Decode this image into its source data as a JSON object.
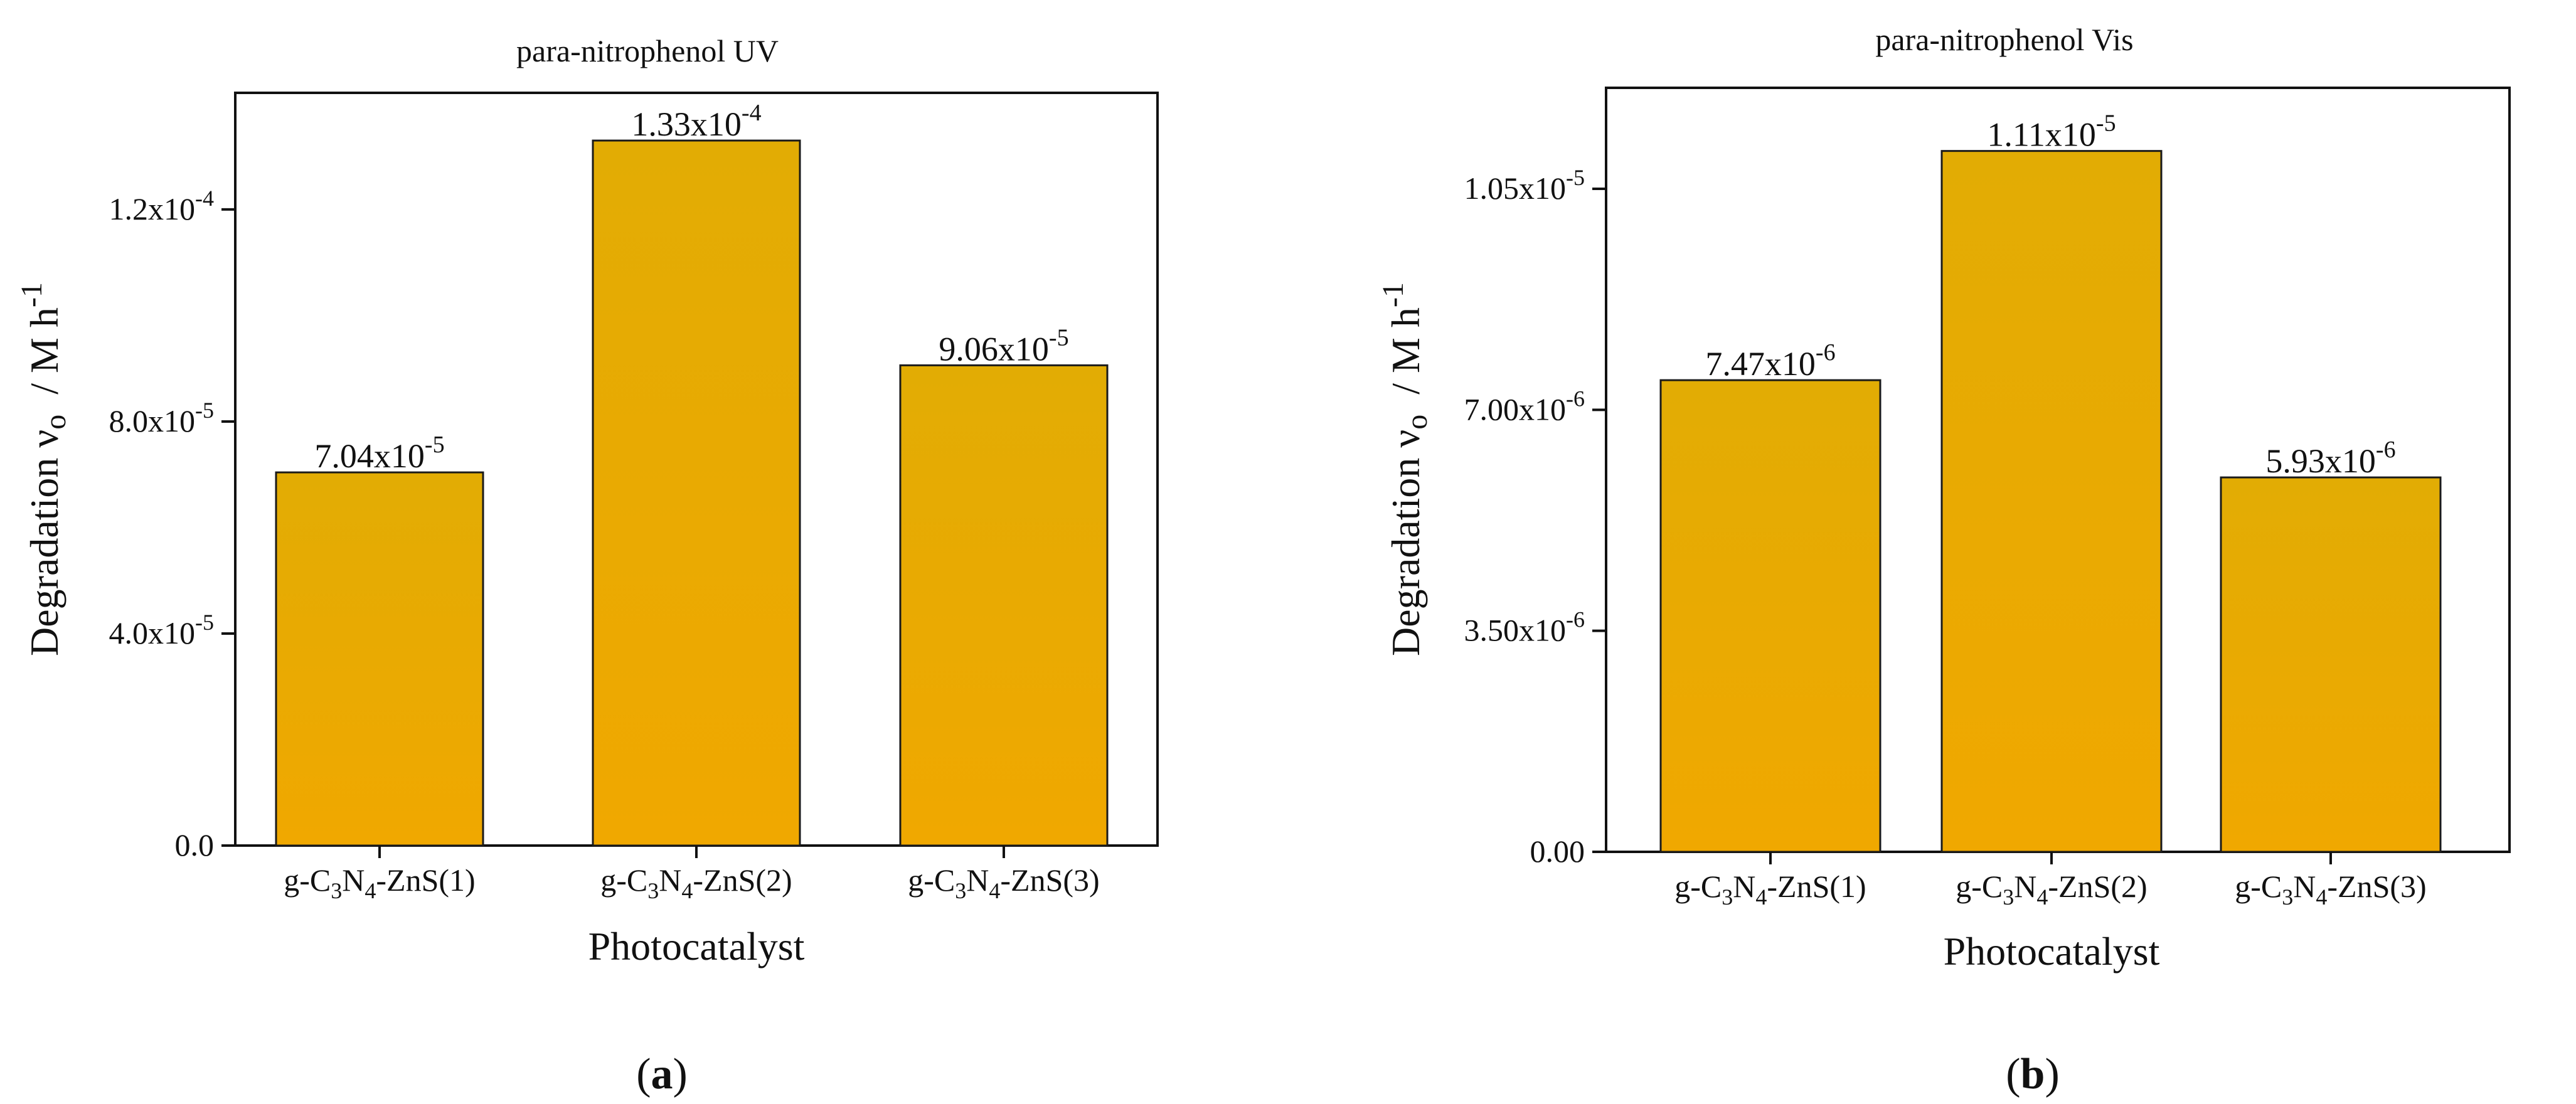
{
  "figure": {
    "panel_labels": [
      {
        "open": "(",
        "letter": "a",
        "close": ")"
      },
      {
        "open": "(",
        "letter": "b",
        "close": ")"
      }
    ]
  },
  "chart_data": [
    {
      "type": "bar",
      "title": "para-nitrophenol UV",
      "xlabel": "Photocatalyst",
      "ylabel": {
        "main": "Degradation ν",
        "sub": "o",
        "unit": "  / M h",
        "sup": "-1"
      },
      "categories": [
        {
          "pre": "g-C",
          "s1": "3",
          "mid": "N",
          "s2": "4",
          "post": "-ZnS(1)"
        },
        {
          "pre": "g-C",
          "s1": "3",
          "mid": "N",
          "s2": "4",
          "post": "-ZnS(2)"
        },
        {
          "pre": "g-C",
          "s1": "3",
          "mid": "N",
          "s2": "4",
          "post": "-ZnS(3)"
        }
      ],
      "values": [
        7.04e-05,
        0.000133,
        9.06e-05
      ],
      "data_labels": [
        {
          "mantissa": "7.04x10",
          "exp": "-5"
        },
        {
          "mantissa": "1.33x10",
          "exp": "-4"
        },
        {
          "mantissa": "9.06x10",
          "exp": "-5"
        }
      ],
      "ylim": [
        0,
        0.000142
      ],
      "yticks": [
        {
          "value": 0,
          "text": "0.0",
          "exp": ""
        },
        {
          "value": 4e-05,
          "text": "4.0x10",
          "exp": "-5"
        },
        {
          "value": 8e-05,
          "text": "8.0x10",
          "exp": "-5"
        },
        {
          "value": 0.00012,
          "text": "1.2x10",
          "exp": "-4"
        }
      ],
      "bar_color": "#EBAA00",
      "grid": false,
      "legend": "none"
    },
    {
      "type": "bar",
      "title": "para-nitrophenol Vis",
      "xlabel": "Photocatalyst",
      "ylabel": {
        "main": "Degradation ν",
        "sub": "o",
        "unit": "  / M h",
        "sup": "-1"
      },
      "categories": [
        {
          "pre": "g-C",
          "s1": "3",
          "mid": "N",
          "s2": "4",
          "post": "-ZnS(1)"
        },
        {
          "pre": "g-C",
          "s1": "3",
          "mid": "N",
          "s2": "4",
          "post": "-ZnS(2)"
        },
        {
          "pre": "g-C",
          "s1": "3",
          "mid": "N",
          "s2": "4",
          "post": "-ZnS(3)"
        }
      ],
      "values": [
        7.47e-06,
        1.11e-05,
        5.93e-06
      ],
      "data_labels": [
        {
          "mantissa": "7.47x10",
          "exp": "-6"
        },
        {
          "mantissa": "1.11x10",
          "exp": "-5"
        },
        {
          "mantissa": "5.93x10",
          "exp": "-6"
        }
      ],
      "ylim": [
        0,
        1.21e-05
      ],
      "yticks": [
        {
          "value": 0,
          "text": "0.00",
          "exp": ""
        },
        {
          "value": 3.5e-06,
          "text": "3.50x10",
          "exp": "-6"
        },
        {
          "value": 7e-06,
          "text": "7.00x10",
          "exp": "-6"
        },
        {
          "value": 1.05e-05,
          "text": "1.05x10",
          "exp": "-5"
        }
      ],
      "bar_color": "#EBAA00",
      "grid": false,
      "legend": "none"
    }
  ]
}
